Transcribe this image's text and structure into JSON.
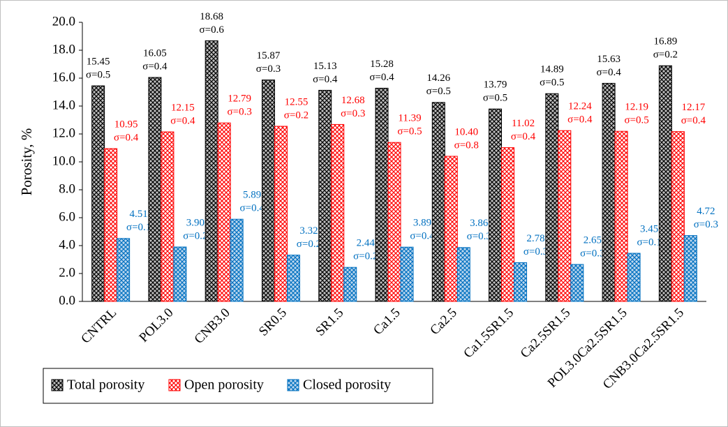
{
  "chart_data": {
    "type": "bar",
    "ylabel": "Porosity, %",
    "categories": [
      "CNTRL",
      "POL3.0",
      "CNB3.0",
      "SR0.5",
      "SR1.5",
      "Ca1.5",
      "Ca2.5",
      "Ca1.5SR1.5",
      "Ca2.5SR1.5",
      "POL3.0Ca2.5SR1.5",
      "CNB3.0Ca2.5SR1.5"
    ],
    "series": [
      {
        "name": "Total porosity",
        "color": "#000000",
        "fill": "#bfbfbf",
        "values": [
          15.45,
          16.05,
          18.68,
          15.87,
          15.13,
          15.28,
          14.26,
          13.79,
          14.89,
          15.63,
          16.89
        ],
        "value_labels": [
          "15.45",
          "16.05",
          "18.68",
          "15.87",
          "15.13",
          "15.28",
          "14.26",
          "13.79",
          "14.89",
          "15.63",
          "16.89"
        ],
        "sigma_labels": [
          "σ=0.5",
          "σ=0.4",
          "σ=0.6",
          "σ=0.3",
          "σ=0.4",
          "σ=0.4",
          "σ=0.5",
          "σ=0.5",
          "σ=0.5",
          "σ=0.4",
          "σ=0.2"
        ]
      },
      {
        "name": "Open porosity",
        "color": "#ff0000",
        "fill": "#ffffff",
        "values": [
          10.95,
          12.15,
          12.79,
          12.55,
          12.68,
          11.39,
          10.4,
          11.02,
          12.24,
          12.19,
          12.17
        ],
        "value_labels": [
          "10.95",
          "12.15",
          "12.79",
          "12.55",
          "12.68",
          "11.39",
          "10.40",
          "11.02",
          "12.24",
          "12.19",
          "12.17"
        ],
        "sigma_labels": [
          "σ=0.4",
          "σ=0.4",
          "σ=0.3",
          "σ=0.2",
          "σ=0.3",
          "σ=0.5",
          "σ=0.8",
          "σ=0.4",
          "σ=0.4",
          "σ=0.5",
          "σ=0.4"
        ]
      },
      {
        "name": "Closed porosity",
        "color": "#0070c0",
        "fill": "#bdd7ee",
        "values": [
          4.51,
          3.9,
          5.89,
          3.32,
          2.44,
          3.89,
          3.86,
          2.78,
          2.65,
          3.45,
          4.72
        ],
        "value_labels": [
          "4.51",
          "3.90",
          "5.89",
          "3.32",
          "2.44",
          "3.89",
          "3.86",
          "2.78",
          "2.65",
          "3.45",
          "4.72"
        ],
        "sigma_labels": [
          "σ=0.1",
          "σ=0.2",
          "σ=0.4",
          "σ=0.2",
          "σ=0.2",
          "σ=0.4",
          "σ=0.3",
          "σ=0.3",
          "σ=0.3",
          "σ=0.1",
          "σ=0.3"
        ]
      }
    ],
    "ylim": [
      0,
      20
    ],
    "yticks": [
      {
        "value": 0,
        "label": "0.0"
      },
      {
        "value": 2,
        "label": "2.0"
      },
      {
        "value": 4,
        "label": "4.0"
      },
      {
        "value": 6,
        "label": "6.0"
      },
      {
        "value": 8,
        "label": "8.0"
      },
      {
        "value": 10,
        "label": "10.0"
      },
      {
        "value": 12,
        "label": "12.0"
      },
      {
        "value": 14,
        "label": "14.0"
      },
      {
        "value": 16,
        "label": "16.0"
      },
      {
        "value": 18,
        "label": "18.0"
      },
      {
        "value": 20,
        "label": "20.0"
      }
    ],
    "grid": false,
    "legend": "bottom-left"
  }
}
